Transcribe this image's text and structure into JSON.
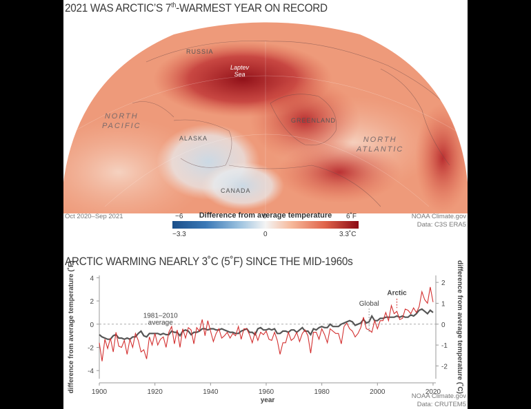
{
  "map": {
    "title_main": "2021 WAS ARCTIC’S 7",
    "title_sup": "th",
    "title_end": "-WARMEST YEAR ON RECORD",
    "labels": {
      "russia": "RUSSIA",
      "laptev_line1": "Laptev",
      "laptev_line2": "Sea",
      "greenland": "GREENLAND",
      "north_pacific_1": "NORTH",
      "north_pacific_2": "PACIFIC",
      "alaska": "ALASKA",
      "north_atlantic_1": "NORTH",
      "north_atlantic_2": "ATLANTIC",
      "canada": "CANADA"
    },
    "period": "Oct 2020–Sep 2021",
    "credit_1": "NOAA Climate.gov",
    "credit_2": "Data: C3S ERA5",
    "legend": {
      "title": "Difference from average temperature",
      "f_min": "−6",
      "f_mid": "0",
      "f_max": "6˚F",
      "c_min": "−3.3",
      "c_mid": "0",
      "c_max": "3.3˚C",
      "colors": [
        "#1a4f8a",
        "#9cc2df",
        "#f4f4f4",
        "#e0634a",
        "#8c0a14"
      ]
    }
  },
  "chart": {
    "title": "ARCTIC WARMING NEARLY 3˚C (5˚F) SINCE THE MID-1960s",
    "credit_1": "NOAA Climate.gov",
    "credit_2": "Data: CRUTEM5",
    "baseline_line1": "1981–2010",
    "baseline_line2": "average",
    "label_global": "Global",
    "label_arctic": "Arctic",
    "colors": {
      "arctic": "#d32f2f",
      "global": "#555555"
    }
  },
  "chart_data": {
    "type": "line",
    "xlabel": "year",
    "ylabel_left": "difference from average temperature (˚F)",
    "ylabel_right": "difference from average temperature (˚C)",
    "xlim": [
      1900,
      2021
    ],
    "ylim_f": [
      -4.7,
      4.2
    ],
    "xticks": [
      1900,
      1920,
      1940,
      1960,
      1980,
      2000,
      2020
    ],
    "yticks_f": [
      -4,
      -2,
      0,
      2,
      4
    ],
    "yticks_c": [
      -2,
      -1,
      0,
      1,
      2
    ],
    "x_start": 1900,
    "series": [
      {
        "name": "Arctic",
        "color": "#d32f2f",
        "values": [
          -1.6,
          -3.2,
          -1.3,
          -2.1,
          -1.2,
          -2.4,
          -0.7,
          -1.9,
          -2.0,
          -1.4,
          -2.6,
          -1.3,
          -2.0,
          -0.8,
          -1.4,
          -2.4,
          -2.2,
          -3.0,
          -1.1,
          -1.8,
          -0.8,
          -1.8,
          -1.3,
          -1.1,
          -2.0,
          -0.7,
          -0.2,
          -1.7,
          -0.5,
          -2.0,
          -0.4,
          -1.2,
          -0.3,
          -0.5,
          -1.7,
          -0.3,
          -0.6,
          0.4,
          -1.0,
          0.3,
          -0.6,
          -1.5,
          -0.8,
          -0.4,
          -1.2,
          -1.0,
          -0.7,
          -1.2,
          -0.8,
          -1.0,
          -0.2,
          -1.3,
          -0.4,
          -0.4,
          -0.9,
          -1.6,
          -0.7,
          -1.4,
          -0.7,
          -0.9,
          -0.6,
          -1.3,
          -1.4,
          -0.7,
          -1.4,
          -2.6,
          -1.6,
          -1.6,
          -0.7,
          -1.4,
          -1.2,
          -0.7,
          -1.5,
          -0.8,
          -0.5,
          -1.0,
          -2.5,
          -0.7,
          -0.7,
          -1.3,
          -0.4,
          -0.9,
          -1.6,
          -0.4,
          -0.6,
          -0.8,
          -0.8,
          -1.7,
          -0.2,
          0.1,
          -0.4,
          -0.6,
          -1.1,
          -0.8,
          -0.3,
          0.6,
          -0.4,
          -0.5,
          -0.7,
          0.3,
          -0.4,
          0.3,
          0.3,
          1.0,
          0.3,
          1.6,
          0.9,
          1.1,
          0.4,
          0.5,
          1.3,
          1.2,
          0.9,
          1.4,
          1.0,
          1.5,
          2.8,
          2.1,
          1.8,
          3.2,
          1.9
        ]
      },
      {
        "name": "Global",
        "color": "#555555",
        "values": [
          -0.9,
          -1.1,
          -1.2,
          -1.3,
          -1.3,
          -1.0,
          -0.9,
          -1.2,
          -1.2,
          -1.3,
          -1.2,
          -1.3,
          -1.1,
          -1.1,
          -0.8,
          -0.6,
          -1.0,
          -1.1,
          -0.8,
          -0.8,
          -0.8,
          -0.8,
          -0.9,
          -0.8,
          -0.9,
          -0.9,
          -0.6,
          -0.7,
          -0.7,
          -1.0,
          -0.6,
          -0.5,
          -0.6,
          -0.9,
          -0.7,
          -0.7,
          -0.6,
          -0.4,
          -0.4,
          -0.5,
          -0.4,
          -0.4,
          -0.5,
          -0.5,
          -0.4,
          -0.5,
          -0.6,
          -0.7,
          -0.7,
          -0.8,
          -0.8,
          -0.6,
          -0.5,
          -0.4,
          -0.7,
          -0.7,
          -0.9,
          -0.4,
          -0.3,
          -0.5,
          -0.5,
          -0.4,
          -0.5,
          -0.4,
          -0.8,
          -0.8,
          -0.6,
          -0.6,
          -0.7,
          -0.5,
          -0.5,
          -0.7,
          -0.5,
          -0.3,
          -0.6,
          -0.6,
          -0.9,
          -0.4,
          -0.5,
          -0.3,
          -0.2,
          -0.3,
          -0.3,
          0.0,
          -0.2,
          -0.2,
          -0.2,
          0.0,
          0.1,
          0.2,
          0.3,
          0.2,
          -0.1,
          0.0,
          0.1,
          0.4,
          0.1,
          0.2,
          0.7,
          0.3,
          0.3,
          0.5,
          0.5,
          0.6,
          0.6,
          0.6,
          0.6,
          0.7,
          0.6,
          0.7,
          0.6,
          0.6,
          0.8,
          0.7,
          0.9,
          1.2,
          1.3,
          1.1,
          0.9,
          1.2,
          1.0
        ]
      }
    ],
    "baseline": 0
  }
}
